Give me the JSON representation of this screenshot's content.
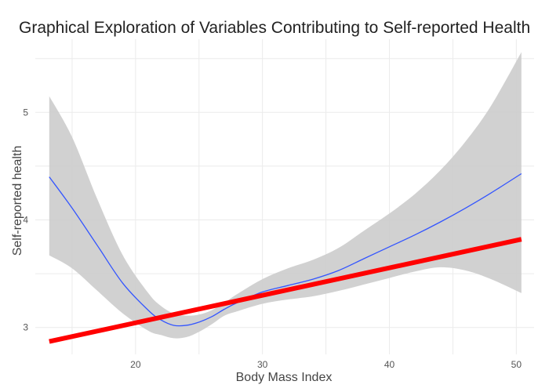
{
  "chart_data": {
    "type": "line",
    "title": "Graphical Exploration of Variables Contributing to Self-reported Health",
    "xlabel": "Body Mass Index",
    "ylabel": "Self-reported health",
    "xlim": [
      12.1,
      51.4
    ],
    "ylim": [
      2.75,
      5.68
    ],
    "x_ticks": [
      20,
      30,
      40,
      50
    ],
    "y_ticks": [
      3,
      4,
      5
    ],
    "grid": true,
    "legend": "none",
    "series": [
      {
        "type": "loess-smooth",
        "color": "#3355ff",
        "x": [
          13.2,
          15,
          17,
          19,
          21,
          22,
          23,
          24,
          25,
          26,
          27,
          28,
          30,
          32,
          34,
          36,
          38,
          40,
          42,
          44,
          46,
          48,
          50.4
        ],
        "values": [
          4.4,
          4.11,
          3.76,
          3.41,
          3.16,
          3.07,
          3.02,
          3.02,
          3.05,
          3.1,
          3.17,
          3.23,
          3.33,
          3.39,
          3.45,
          3.53,
          3.64,
          3.75,
          3.86,
          3.98,
          4.11,
          4.25,
          4.43
        ],
        "ci_upper": [
          5.15,
          4.77,
          4.19,
          3.67,
          3.32,
          3.2,
          3.13,
          3.11,
          3.12,
          3.16,
          3.23,
          3.31,
          3.45,
          3.55,
          3.63,
          3.74,
          3.9,
          4.06,
          4.24,
          4.46,
          4.73,
          5.06,
          5.56
        ],
        "ci_lower": [
          3.67,
          3.55,
          3.34,
          3.13,
          2.97,
          2.93,
          2.9,
          2.91,
          2.96,
          3.03,
          3.11,
          3.15,
          3.22,
          3.26,
          3.29,
          3.34,
          3.4,
          3.46,
          3.52,
          3.56,
          3.53,
          3.45,
          3.32
        ],
        "ci_color": "#cccccc"
      },
      {
        "type": "linear-fit",
        "color": "#ff0000",
        "x": [
          13.2,
          50.4
        ],
        "values": [
          2.87,
          3.82
        ]
      }
    ]
  }
}
